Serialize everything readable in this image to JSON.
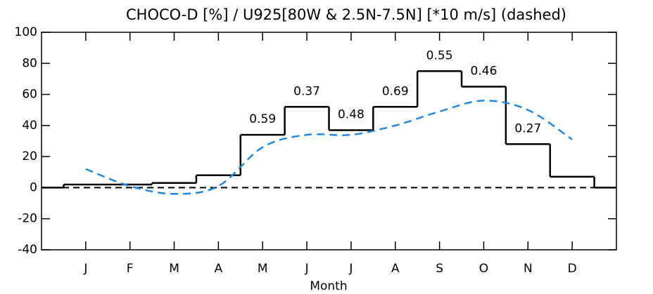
{
  "chart_data": {
    "type": "step",
    "title": "CHOCO-D [%] / U925[80W & 2.5N-7.5N] [*10 m/s] (dashed)",
    "x_label": "Month",
    "categories": [
      "J",
      "F",
      "M",
      "A",
      "M",
      "J",
      "J",
      "A",
      "S",
      "O",
      "N",
      "D"
    ],
    "x": [
      1,
      2,
      3,
      4,
      5,
      6,
      7,
      8,
      9,
      10,
      11,
      12
    ],
    "xlim": [
      0,
      13
    ],
    "ylim": [
      -40,
      100
    ],
    "yticks": [
      -40,
      -20,
      0,
      20,
      40,
      60,
      80,
      100
    ],
    "reference_line": 0,
    "series": [
      {
        "color": "#000000",
        "style": "step",
        "values": [
          2,
          2,
          3,
          8,
          34,
          52,
          37,
          52,
          75,
          65,
          28,
          7
        ],
        "data_labels": [
          null,
          null,
          null,
          null,
          0.59,
          0.37,
          0.48,
          0.69,
          0.55,
          0.46,
          0.27,
          null
        ]
      },
      {
        "color": "#1e88e5",
        "style": "dashed",
        "values": [
          12,
          1,
          -4,
          1,
          26,
          34,
          34,
          40,
          49,
          56,
          50,
          31
        ]
      }
    ]
  }
}
